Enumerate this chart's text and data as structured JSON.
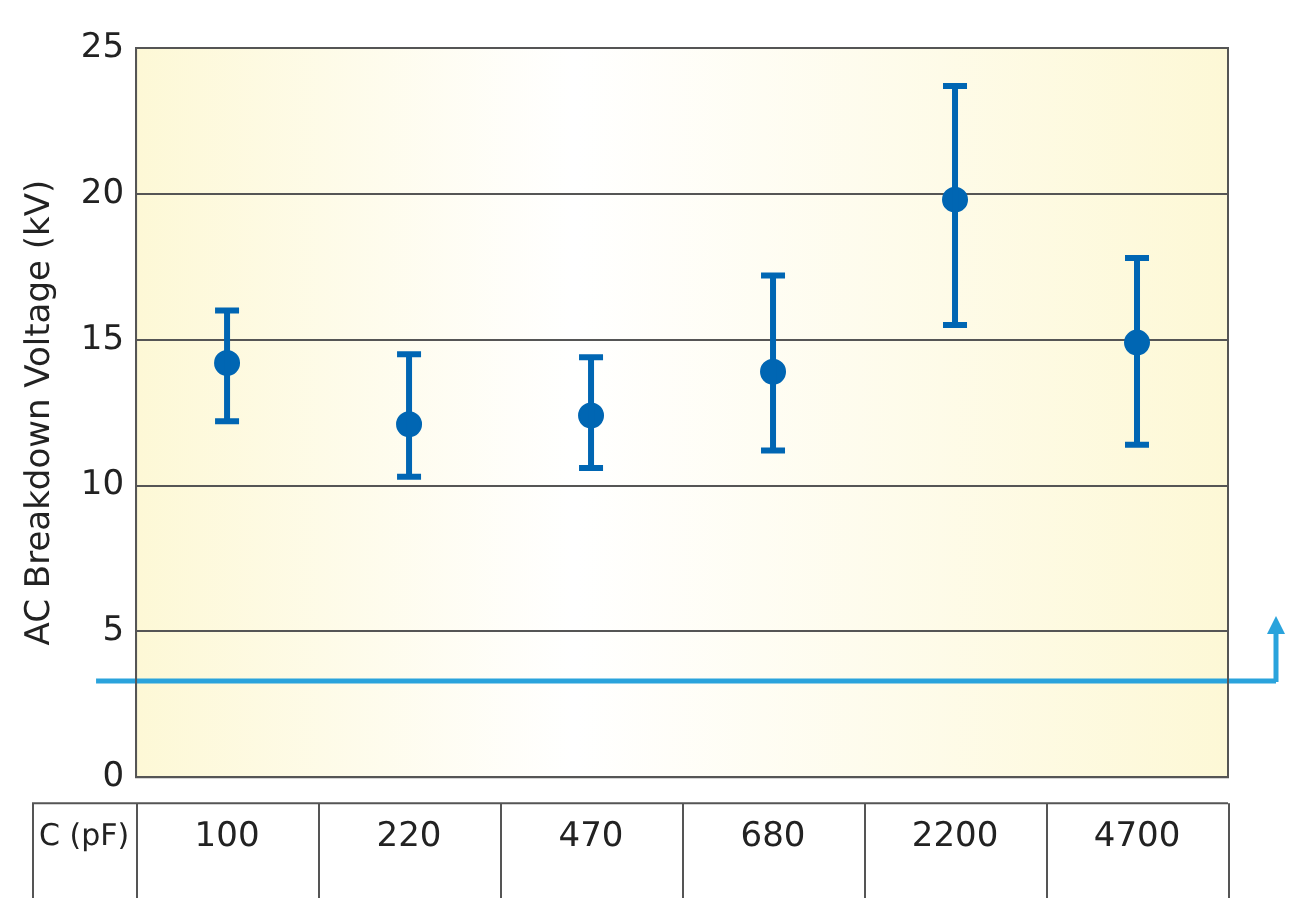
{
  "chart_data": {
    "type": "scatter",
    "ylabel": "AC Breakdown Voltage (kV)",
    "xlabel": "C (pF)",
    "categories": [
      "100",
      "220",
      "470",
      "680",
      "2200",
      "4700"
    ],
    "series": [
      {
        "color": "#0066b3",
        "values": [
          14.2,
          12.1,
          12.4,
          13.9,
          19.8,
          14.9
        ],
        "errors": [
          [
            12.2,
            16.0
          ],
          [
            10.3,
            14.5
          ],
          [
            10.6,
            14.4
          ],
          [
            11.2,
            17.2
          ],
          [
            15.5,
            23.7
          ],
          [
            11.4,
            17.8
          ]
        ]
      }
    ],
    "ylim": [
      0,
      25
    ],
    "yticks": [
      0,
      5,
      10,
      15,
      20,
      25
    ],
    "grid": "y",
    "marker": "circle",
    "legend": false,
    "ref_lines": [
      {
        "axis": "y",
        "value": 3.3,
        "color": "#2aa3dc"
      }
    ]
  }
}
